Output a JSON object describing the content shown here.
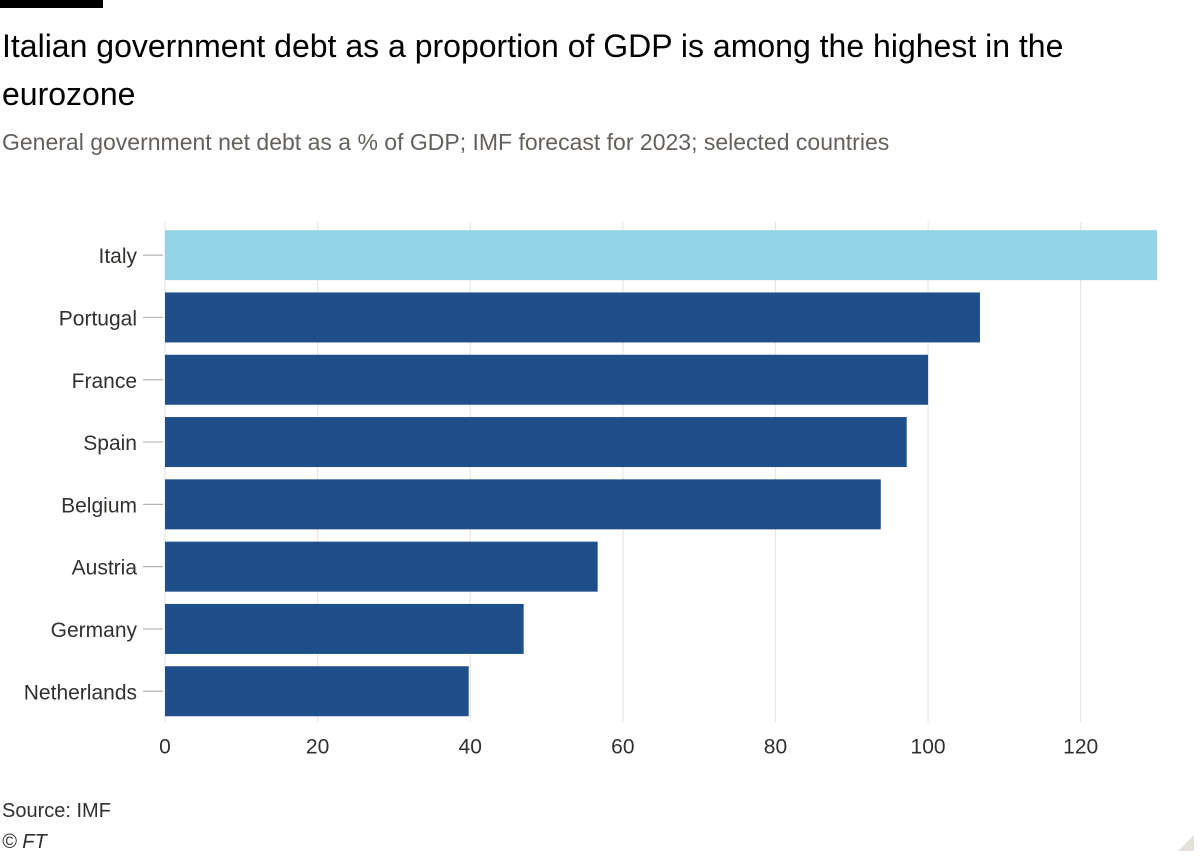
{
  "header": {
    "title": "Italian government debt as a proportion of GDP is among the highest in the eurozone",
    "subtitle": "General government net debt as a % of GDP; IMF forecast for 2023; selected countries"
  },
  "footer": {
    "source": "Source: IMF",
    "copyright": "© FT"
  },
  "colors": {
    "highlight_bar": "#94d3e5",
    "default_bar": "#1f4f8a",
    "gridline": "#e9e5e0",
    "axis_text": "#33302e",
    "tick_mark": "#b8b2ac"
  },
  "chart_data": {
    "type": "bar",
    "orientation": "horizontal",
    "title": "Italian government debt as a proportion of GDP is among the highest in the eurozone",
    "subtitle": "General government net debt as a % of GDP; IMF forecast for 2023; selected countries",
    "xlabel": "",
    "ylabel": "",
    "categories": [
      "Italy",
      "Portugal",
      "France",
      "Spain",
      "Belgium",
      "Austria",
      "Germany",
      "Netherlands"
    ],
    "values": [
      130,
      106.8,
      100,
      97.2,
      93.8,
      56.7,
      47,
      39.8
    ],
    "highlight": [
      "Italy"
    ],
    "xlim": [
      0,
      130
    ],
    "xticks": [
      0,
      20,
      40,
      60,
      80,
      100,
      120
    ],
    "grid": true,
    "legend": "none"
  }
}
